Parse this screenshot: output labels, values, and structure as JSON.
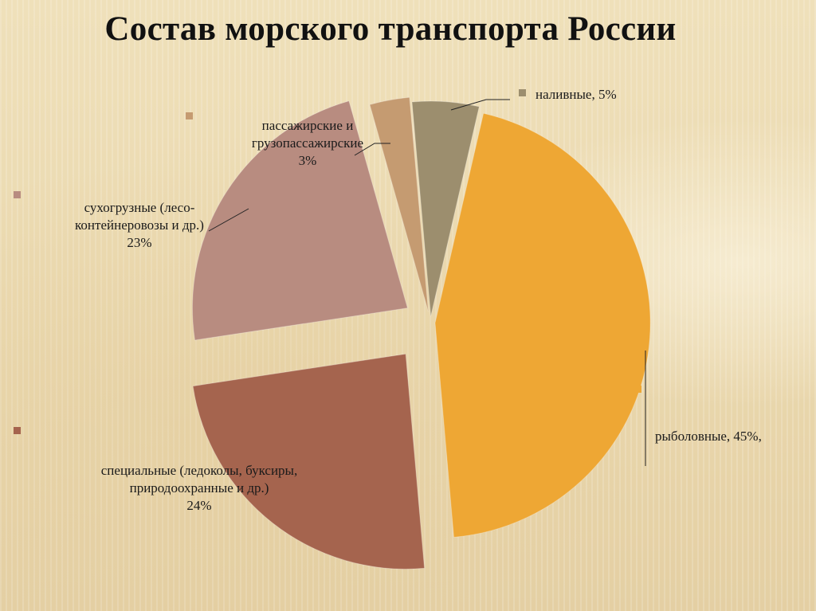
{
  "slide": {
    "title": "Состав морского транспорта России"
  },
  "chart_data": {
    "type": "pie",
    "title": "Состав морского транспорта России",
    "slices": [
      {
        "label_lines": [
          "наливные, 5%"
        ],
        "value": 5,
        "color": "#9c8e6e"
      },
      {
        "label_lines": [
          "рыболовные, 45%,"
        ],
        "value": 45,
        "color": "#eea734"
      },
      {
        "label_lines": [
          "специальные (ледоколы, буксиры,",
          "природоохранные и др.)",
          "24%"
        ],
        "value": 24,
        "color": "#a5644e"
      },
      {
        "label_lines": [
          "сухогрузные (лесо-",
          "контейнеровозы и др.)",
          "23%"
        ],
        "value": 23,
        "color": "#b88c80"
      },
      {
        "label_lines": [
          "пассажирские и",
          "грузопассажирские",
          "3%"
        ],
        "value": 3,
        "color": "#c59b71"
      }
    ]
  }
}
